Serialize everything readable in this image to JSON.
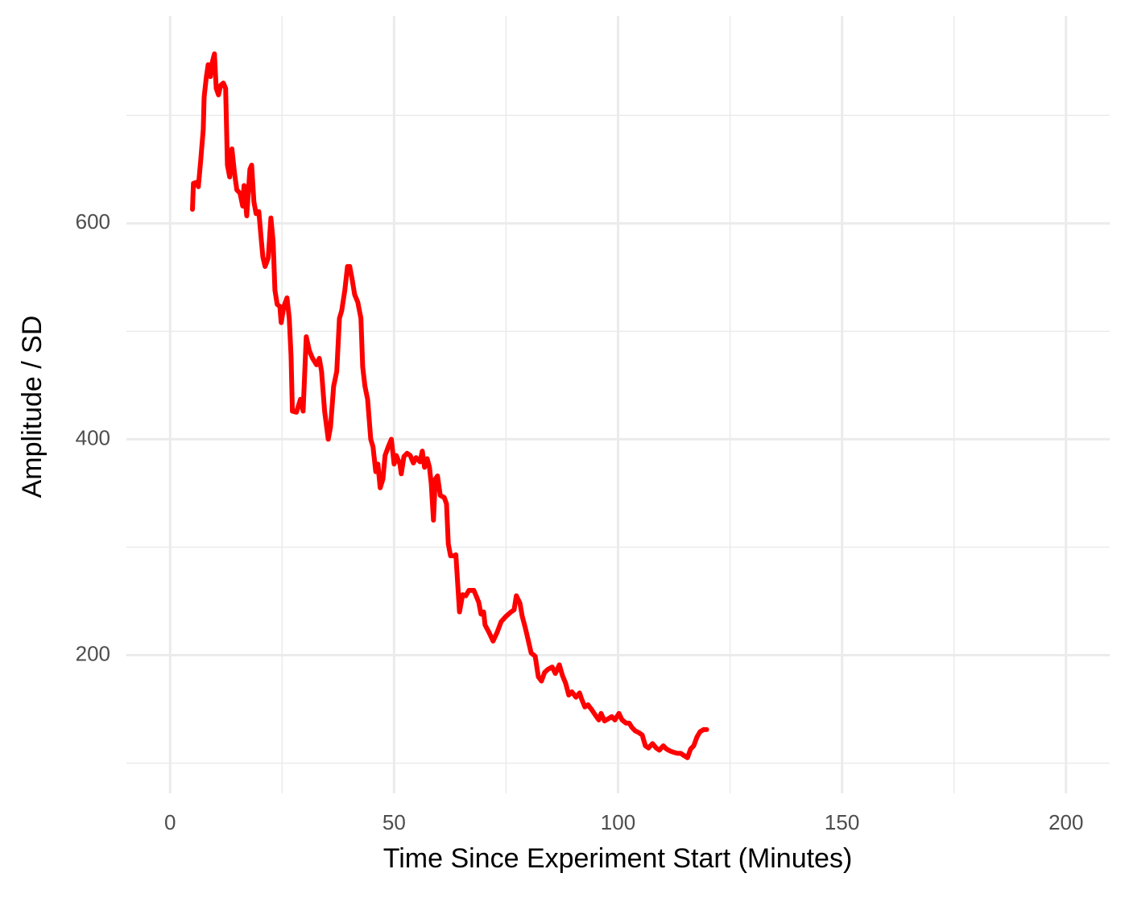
{
  "chart_data": {
    "type": "line",
    "x_label": "Time Since Experiment Start (Minutes)",
    "y_label": "Amplitude / SD",
    "color": "#ff0000",
    "grid": true,
    "xlim": [
      -9.75,
      209.75
    ],
    "ylim": [
      72,
      792
    ],
    "xticks": [
      0,
      50,
      100,
      150,
      200
    ],
    "yticks": [
      200,
      400,
      600
    ],
    "xminor": [
      25,
      75,
      125,
      175
    ],
    "yminor": [
      100,
      300,
      500,
      700
    ],
    "x": [
      5.0,
      5.2,
      5.9,
      6.3,
      6.8,
      7.4,
      7.6,
      8.1,
      8.5,
      9.0,
      9.4,
      9.9,
      10.3,
      10.8,
      11.3,
      11.9,
      12.4,
      12.8,
      13.3,
      13.8,
      14.4,
      14.9,
      15.6,
      16.2,
      16.5,
      17.1,
      17.8,
      18.2,
      18.7,
      19.2,
      19.8,
      20.3,
      20.7,
      21.2,
      21.9,
      22.5,
      23.0,
      23.4,
      23.9,
      24.5,
      24.8,
      25.4,
      26.1,
      26.6,
      27.0,
      27.3,
      28.2,
      29.1,
      29.7,
      30.4,
      31.1,
      31.8,
      32.7,
      33.3,
      33.8,
      34.5,
      35.3,
      35.8,
      36.5,
      37.2,
      37.8,
      38.3,
      39.0,
      39.6,
      40.1,
      40.6,
      41.2,
      41.9,
      42.6,
      43.0,
      43.5,
      44.1,
      44.8,
      45.3,
      45.9,
      46.4,
      46.9,
      47.5,
      48.0,
      48.7,
      49.4,
      50.0,
      50.5,
      51.3,
      51.6,
      52.2,
      52.9,
      53.6,
      54.3,
      54.9,
      55.8,
      56.3,
      56.8,
      57.4,
      57.9,
      58.3,
      58.8,
      59.2,
      59.7,
      60.3,
      61.2,
      61.7,
      62.1,
      62.6,
      63.3,
      63.8,
      64.2,
      64.6,
      65.3,
      66.0,
      66.7,
      67.8,
      68.3,
      68.9,
      69.4,
      70.0,
      70.3,
      71.2,
      72.1,
      73.0,
      73.9,
      75.0,
      76.1,
      76.8,
      77.3,
      78.1,
      78.6,
      79.3,
      80.0,
      80.6,
      81.5,
      82.2,
      82.9,
      83.6,
      84.4,
      85.3,
      86.0,
      86.9,
      87.6,
      88.3,
      89.0,
      89.7,
      90.6,
      91.4,
      91.9,
      92.6,
      93.3,
      94.2,
      95.0,
      95.7,
      96.2,
      97.0,
      97.8,
      98.6,
      99.3,
      100.2,
      100.9,
      101.8,
      102.5,
      103.1,
      103.8,
      104.7,
      105.4,
      106.1,
      106.8,
      107.7,
      108.5,
      109.2,
      110.1,
      110.8,
      111.7,
      112.4,
      113.3,
      114.0,
      114.7,
      115.5,
      116.2,
      116.9,
      117.6,
      118.3,
      119.1,
      119.8
    ],
    "values": [
      613,
      637,
      638,
      634,
      657,
      687,
      717,
      736,
      747,
      736,
      749,
      757,
      725,
      719,
      728,
      730,
      725,
      654,
      643,
      669,
      646,
      631,
      628,
      616,
      635,
      607,
      650,
      654,
      620,
      609,
      611,
      587,
      569,
      560,
      568,
      605,
      583,
      538,
      525,
      523,
      508,
      523,
      531,
      512,
      478,
      426,
      425,
      437,
      426,
      495,
      482,
      475,
      469,
      475,
      463,
      426,
      400,
      411,
      449,
      463,
      512,
      519,
      538,
      560,
      560,
      549,
      534,
      527,
      512,
      467,
      449,
      437,
      400,
      393,
      370,
      377,
      355,
      363,
      385,
      393,
      400,
      377,
      385,
      377,
      368,
      384,
      387,
      385,
      378,
      383,
      379,
      389,
      374,
      382,
      374,
      359,
      325,
      363,
      366,
      348,
      346,
      340,
      303,
      292,
      292,
      293,
      266,
      240,
      256,
      255,
      260,
      260,
      255,
      249,
      238,
      240,
      228,
      221,
      213,
      221,
      231,
      236,
      240,
      242,
      255,
      248,
      236,
      225,
      213,
      202,
      199,
      180,
      176,
      184,
      187,
      189,
      183,
      191,
      181,
      174,
      163,
      166,
      161,
      165,
      159,
      152,
      154,
      149,
      144,
      140,
      146,
      139,
      141,
      143,
      140,
      146,
      140,
      137,
      137,
      133,
      130,
      128,
      126,
      116,
      114,
      118,
      114,
      112,
      116,
      113,
      111,
      110,
      109,
      109,
      107,
      105,
      113,
      116,
      124,
      129,
      131,
      131
    ]
  }
}
